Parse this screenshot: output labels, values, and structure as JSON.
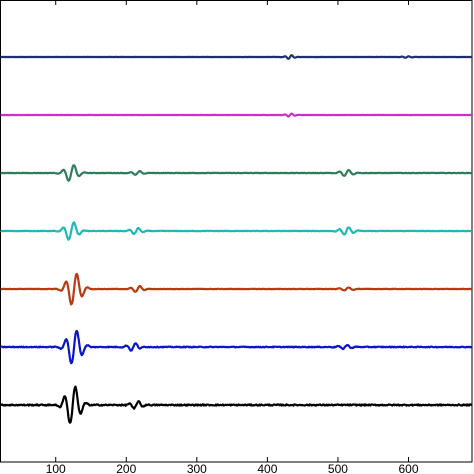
{
  "chart_data": {
    "type": "line",
    "title": "",
    "xlabel": "",
    "ylabel": "",
    "xlim": [
      -30,
      690
    ],
    "xticks": [
      100,
      200,
      300,
      400,
      500,
      600
    ],
    "xtick_labels": [
      "100",
      "200",
      "300",
      "400",
      "500",
      "600"
    ],
    "yticks_shown": false,
    "grid": false,
    "legend": "none",
    "series": [
      {
        "color": "#1f2f6e",
        "baseline": 1,
        "packets": [
          {
            "center": 432,
            "amplitude": 0.05,
            "period": 10,
            "width": 5
          },
          {
            "center": 598,
            "amplitude": 0.02,
            "period": 10,
            "width": 6
          }
        ],
        "noise": 0.003
      },
      {
        "color": "#c832c8",
        "baseline": 2,
        "packets": [
          {
            "center": 432,
            "amplitude": 0.04,
            "period": 10,
            "width": 5
          }
        ],
        "noise": 0.003
      },
      {
        "color": "#2e7d5a",
        "baseline": 3,
        "packets": [
          {
            "center": 122,
            "amplitude": 0.22,
            "period": 16,
            "width": 8
          },
          {
            "center": 216,
            "amplitude": 0.05,
            "period": 14,
            "width": 7
          },
          {
            "center": 512,
            "amplitude": 0.08,
            "period": 14,
            "width": 8
          }
        ],
        "noise": 0.01
      },
      {
        "color": "#1fb8b8",
        "baseline": 4,
        "packets": [
          {
            "center": 122,
            "amplitude": 0.24,
            "period": 16,
            "width": 8
          },
          {
            "center": 214,
            "amplitude": 0.08,
            "period": 14,
            "width": 7
          },
          {
            "center": 512,
            "amplitude": 0.1,
            "period": 14,
            "width": 8
          }
        ],
        "noise": 0.012
      },
      {
        "color": "#b83a10",
        "baseline": 5,
        "packets": [
          {
            "center": 126,
            "amplitude": 0.42,
            "period": 16,
            "width": 9
          },
          {
            "center": 216,
            "amplitude": 0.08,
            "period": 14,
            "width": 7
          },
          {
            "center": 512,
            "amplitude": 0.04,
            "period": 14,
            "width": 8
          }
        ],
        "noise": 0.01
      },
      {
        "color": "#0a14c8",
        "baseline": 6,
        "packets": [
          {
            "center": 126,
            "amplitude": 0.45,
            "period": 16,
            "width": 9
          },
          {
            "center": 210,
            "amplitude": 0.1,
            "period": 14,
            "width": 7
          },
          {
            "center": 510,
            "amplitude": 0.05,
            "period": 14,
            "width": 8
          }
        ],
        "noise": 0.02
      },
      {
        "color": "#000000",
        "baseline": 7,
        "packets": [
          {
            "center": 124,
            "amplitude": 0.5,
            "period": 16,
            "width": 9
          },
          {
            "center": 214,
            "amplitude": 0.1,
            "period": 14,
            "width": 7
          }
        ],
        "noise": 0.03
      }
    ]
  }
}
